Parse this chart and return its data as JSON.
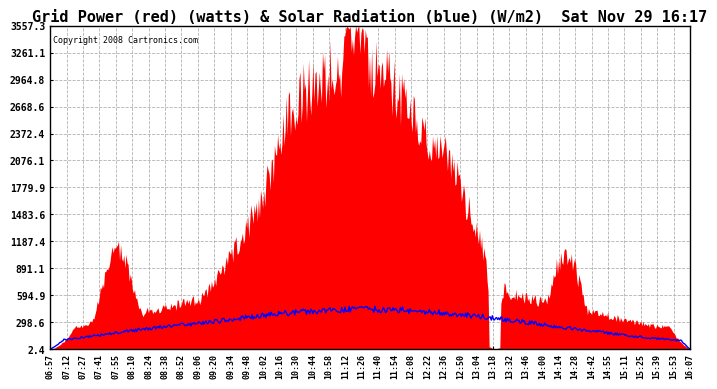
{
  "title": "Grid Power (red) (watts) & Solar Radiation (blue) (W/m2)  Sat Nov 29 16:17",
  "copyright": "Copyright 2008 Cartronics.com",
  "yticks": [
    2.4,
    298.6,
    594.9,
    891.1,
    1187.4,
    1483.6,
    1779.9,
    2076.1,
    2372.4,
    2668.6,
    2964.8,
    3261.1,
    3557.3
  ],
  "ymin": 2.4,
  "ymax": 3557.3,
  "background_color": "#ffffff",
  "plot_bg_color": "#ffffff",
  "grid_color": "#aaaaaa",
  "red_fill_color": "#ff0000",
  "blue_line_color": "#0000ff",
  "title_fontsize": 11,
  "xtick_labels": [
    "06:57",
    "07:12",
    "07:27",
    "07:41",
    "07:55",
    "08:10",
    "08:24",
    "08:38",
    "08:52",
    "09:06",
    "09:20",
    "09:34",
    "09:48",
    "10:02",
    "10:16",
    "10:30",
    "10:44",
    "10:58",
    "11:12",
    "11:26",
    "11:40",
    "11:54",
    "12:08",
    "12:22",
    "12:36",
    "12:50",
    "13:04",
    "13:18",
    "13:32",
    "13:46",
    "14:00",
    "14:14",
    "14:28",
    "14:42",
    "14:55",
    "15:11",
    "15:25",
    "15:39",
    "15:53",
    "16:07"
  ]
}
